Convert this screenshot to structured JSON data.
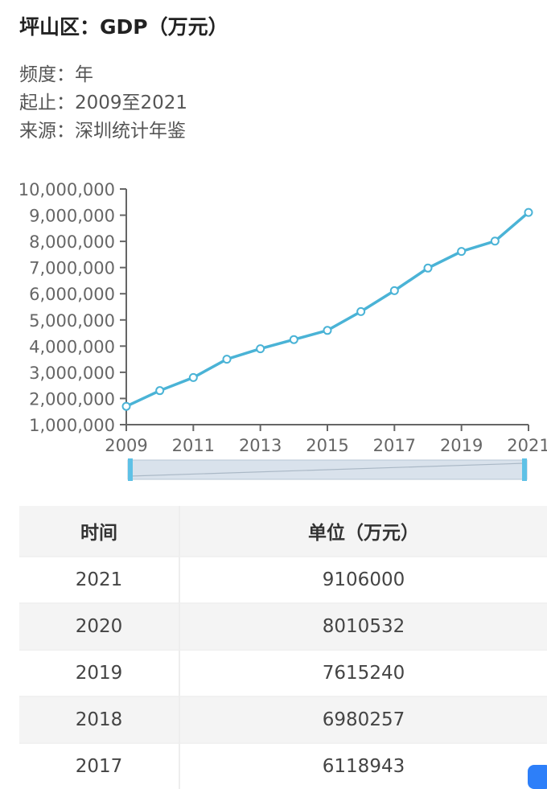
{
  "title": "坪山区：GDP（万元）",
  "meta": {
    "frequency": "频度：年",
    "range": "起止：2009至2021",
    "source": "来源：深圳统计年鉴"
  },
  "colors": {
    "line": "#4ab3d6",
    "axis": "#666666",
    "slider": "#5ec1e6"
  },
  "chart_data": {
    "type": "line",
    "x": [
      2009,
      2010,
      2011,
      2012,
      2013,
      2014,
      2015,
      2016,
      2017,
      2018,
      2019,
      2020,
      2021
    ],
    "series": [
      {
        "values": [
          1700000,
          2300000,
          2800000,
          3500000,
          3900000,
          4250000,
          4600000,
          5320000,
          6118943,
          6980257,
          7615240,
          8010532,
          9106000
        ]
      }
    ],
    "x_tick_labels": [
      "2009",
      "2011",
      "2013",
      "2015",
      "2017",
      "2019",
      "2021"
    ],
    "y_tick_labels": [
      "1,000,000",
      "2,000,000",
      "3,000,000",
      "4,000,000",
      "5,000,000",
      "6,000,000",
      "7,000,000",
      "8,000,000",
      "9,000,000",
      "10,000,000"
    ],
    "ylim": [
      1000000,
      10000000
    ],
    "xlim": [
      2009,
      2021
    ],
    "grid": false,
    "legend": "none"
  },
  "table": {
    "headers": [
      "时间",
      "单位（万元）"
    ],
    "rows": [
      [
        "2021",
        "9106000"
      ],
      [
        "2020",
        "8010532"
      ],
      [
        "2019",
        "7615240"
      ],
      [
        "2018",
        "6980257"
      ],
      [
        "2017",
        "6118943"
      ]
    ]
  }
}
